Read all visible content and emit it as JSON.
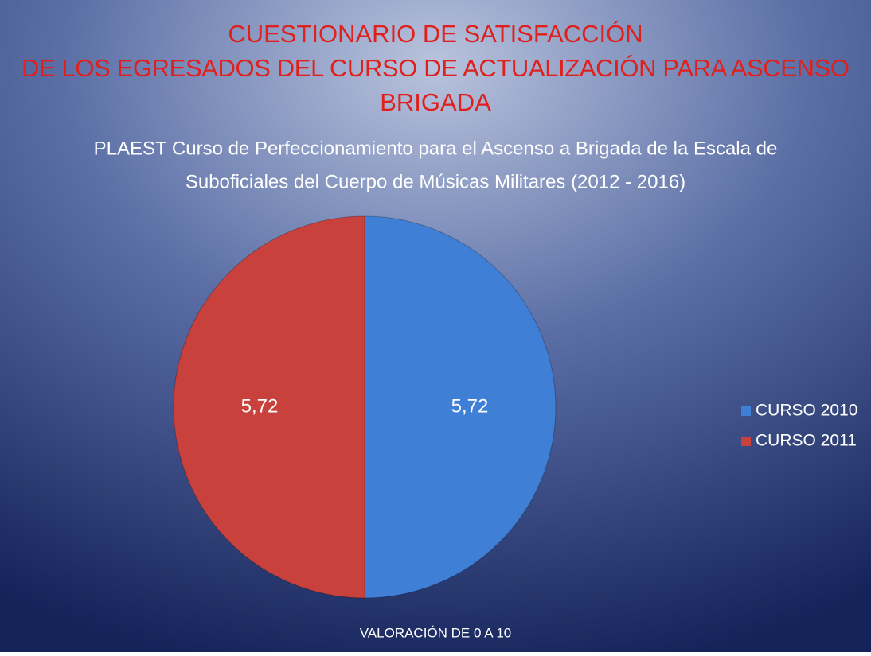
{
  "chart_data": {
    "type": "pie",
    "title": [
      "CUESTIONARIO DE SATISFACCIÓN",
      "DE LOS EGRESADOS DEL CURSO DE ACTUALIZACIÓN PARA ASCENSO",
      "BRIGADA"
    ],
    "subtitle": [
      "PLAEST Curso de Perfeccionamiento para el Ascenso a Brigada de la Escala de",
      "Suboficiales del Cuerpo de Músicas Militares (2012 - 2016)"
    ],
    "x_label": "VALORACIÓN DE 0 A 10",
    "categories": [
      "CURSO 2010",
      "CURSO 2011"
    ],
    "values": [
      5.72,
      5.72
    ],
    "value_labels": [
      "5,72",
      "5,72"
    ],
    "colors": [
      "#3f7fd6",
      "#c9413d"
    ],
    "legend": "right"
  }
}
